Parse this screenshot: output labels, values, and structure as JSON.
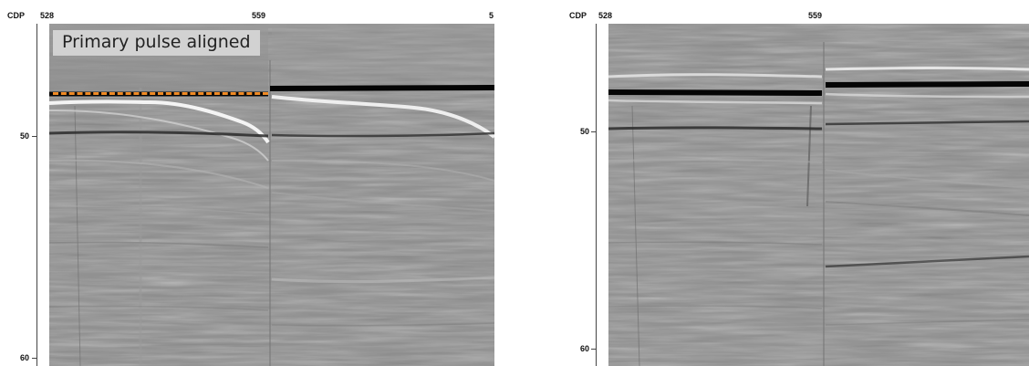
{
  "left": {
    "axis_title": "CDP",
    "cdp_start": "528",
    "cdp_mid": "559",
    "cdp_end": "5",
    "y_labels": [
      "50",
      "60"
    ],
    "annotation": "Primary pulse aligned",
    "guide_line_color": "#f08a24"
  },
  "right": {
    "axis_title": "CDP",
    "cdp_start": "528",
    "cdp_mid": "559",
    "y_labels": [
      "50",
      "60"
    ]
  },
  "colors": {
    "background": "#8c8c8c",
    "reflector": "#000000"
  }
}
